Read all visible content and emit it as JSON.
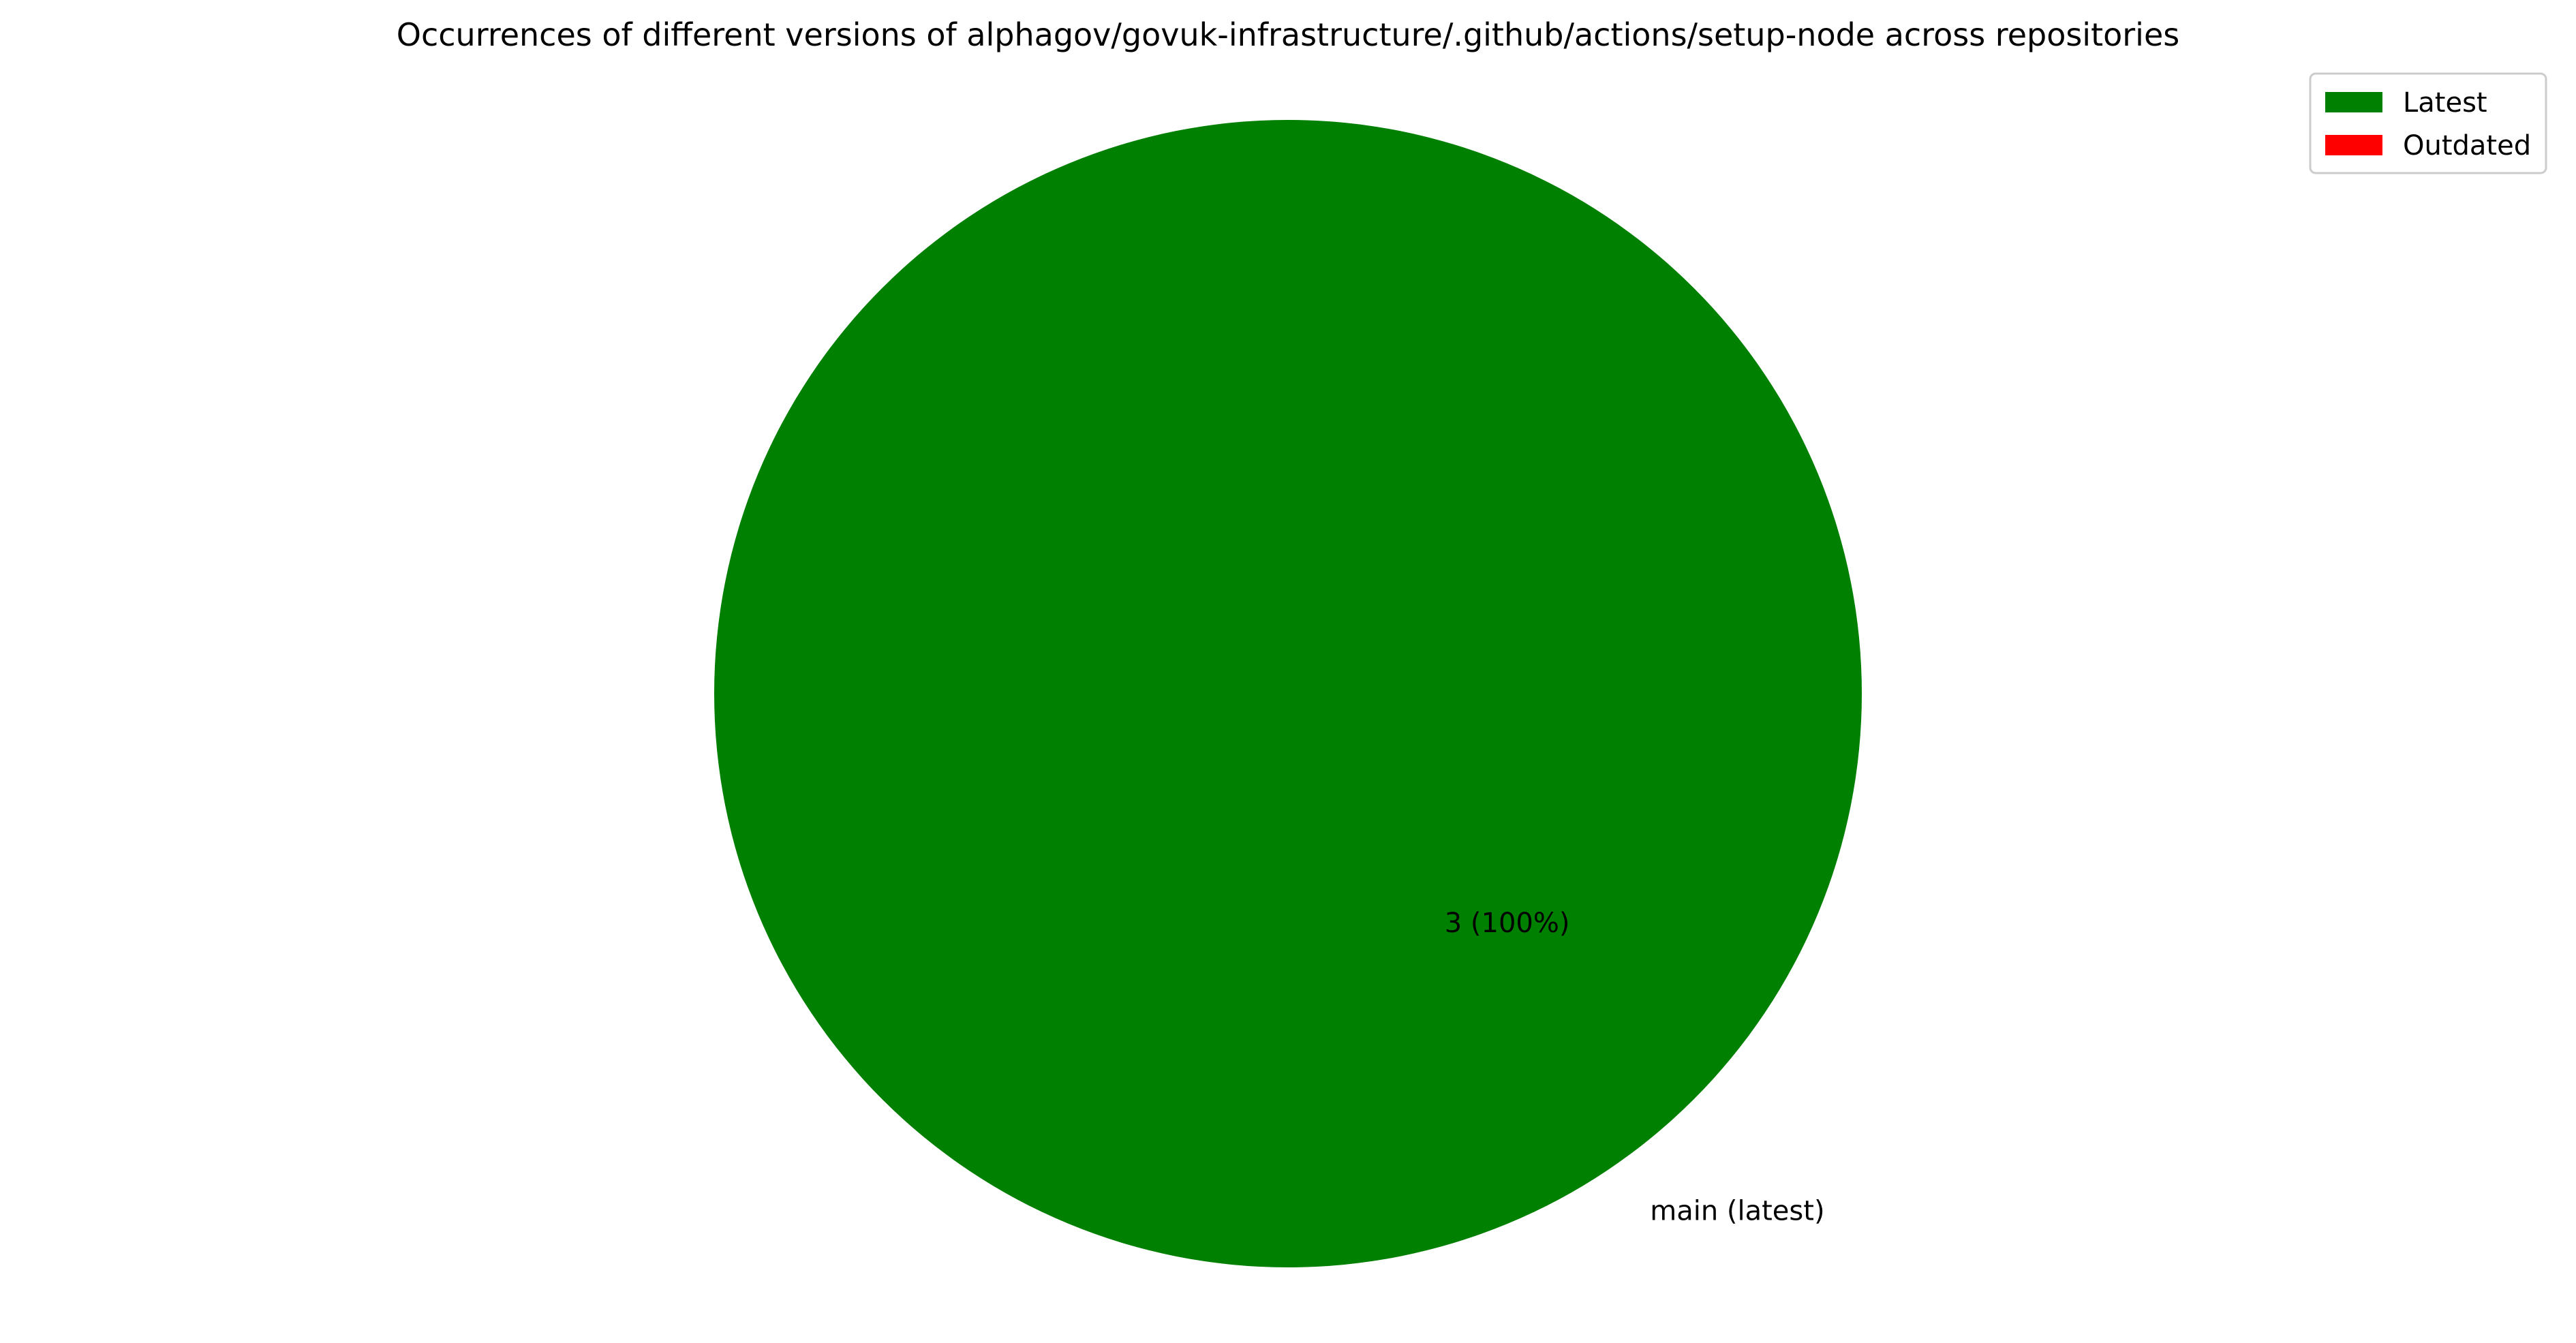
{
  "chart_data": {
    "type": "pie",
    "title": "Occurrences of different versions of alphagov/govuk-infrastructure/.github/actions/setup-node across repositories",
    "slices": [
      {
        "label": "main (latest)",
        "value": 3,
        "value_label": "3 (100%)",
        "color": "#008000"
      }
    ],
    "legend": {
      "placement": "top-right",
      "entries": [
        {
          "label": "Latest",
          "color": "#008000"
        },
        {
          "label": "Outdated",
          "color": "#ff0000"
        }
      ]
    }
  }
}
